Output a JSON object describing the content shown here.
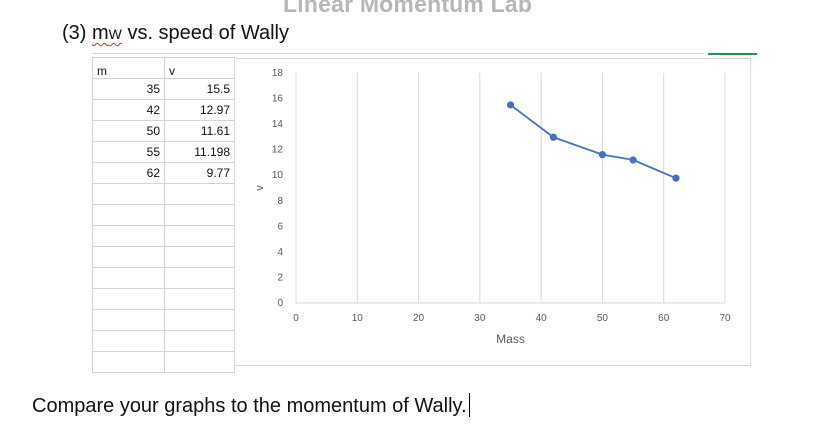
{
  "document": {
    "heading": "Linear Momentum Lab",
    "section_title": {
      "prefix": "(3) ",
      "m": "m",
      "subscript": "W",
      "suffix": " vs. speed of Wally"
    },
    "prompt_text": "Compare your graphs to the momentum of Wally."
  },
  "sheet": {
    "headers": [
      "m",
      "v"
    ],
    "rows": [
      [
        "35",
        "15.5"
      ],
      [
        "42",
        "12.97"
      ],
      [
        "50",
        "11.61"
      ],
      [
        "55",
        "11.198"
      ],
      [
        "62",
        "9.77"
      ]
    ]
  },
  "chart_data": {
    "type": "scatter",
    "xlabel": "Mass",
    "ylabel": "v",
    "xlim": [
      0,
      70
    ],
    "ylim": [
      0,
      18
    ],
    "x_ticks": [
      0,
      10,
      20,
      30,
      40,
      50,
      60,
      70
    ],
    "y_ticks": [
      0,
      2,
      4,
      6,
      8,
      10,
      12,
      14,
      16,
      18
    ],
    "grid": true,
    "legend": "none",
    "series": [
      {
        "x": [
          35,
          42,
          50,
          55,
          62
        ],
        "y": [
          15.5,
          12.97,
          11.61,
          11.198,
          9.77
        ],
        "line": true,
        "marker": "circle",
        "color": "#4472c4"
      }
    ]
  },
  "colors": {
    "series": "#4472c4",
    "gridline": "#d9d9d9",
    "tick_text": "#595959",
    "heading": "#b7b7b7"
  }
}
